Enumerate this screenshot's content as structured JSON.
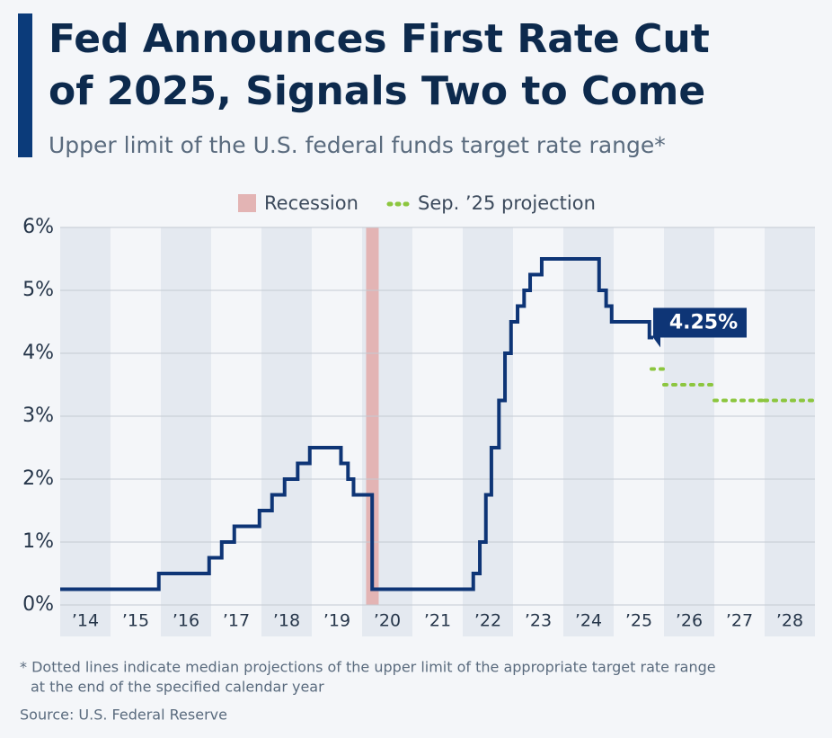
{
  "chart_data": {
    "type": "step",
    "title": [
      "Fed Announces First Rate Cut",
      "of 2025, Signals Two to Come"
    ],
    "subtitle": "Upper limit of the U.S. federal funds target rate range*",
    "footnote": [
      "* Dotted lines indicate median projections of the upper limit of the appropriate target rate range",
      "at the end of the specified calendar year"
    ],
    "source": "Source: U.S. Federal Reserve",
    "xlim": [
      2014,
      2029
    ],
    "xticks": [
      {
        "value": 2014.5,
        "label": "’14"
      },
      {
        "value": 2015.5,
        "label": "’15"
      },
      {
        "value": 2016.5,
        "label": "’16"
      },
      {
        "value": 2017.5,
        "label": "’17"
      },
      {
        "value": 2018.5,
        "label": "’18"
      },
      {
        "value": 2019.5,
        "label": "’19"
      },
      {
        "value": 2020.5,
        "label": "’20"
      },
      {
        "value": 2021.5,
        "label": "’21"
      },
      {
        "value": 2022.5,
        "label": "’22"
      },
      {
        "value": 2023.5,
        "label": "’23"
      },
      {
        "value": 2024.5,
        "label": "’24"
      },
      {
        "value": 2025.5,
        "label": "’25"
      },
      {
        "value": 2026.5,
        "label": "’26"
      },
      {
        "value": 2027.5,
        "label": "’27"
      },
      {
        "value": 2028.5,
        "label": "’28"
      }
    ],
    "ylim": [
      0,
      6
    ],
    "yticks": [
      {
        "value": 0,
        "label": "0%"
      },
      {
        "value": 1,
        "label": "1%"
      },
      {
        "value": 2,
        "label": "2%"
      },
      {
        "value": 3,
        "label": "3%"
      },
      {
        "value": 4,
        "label": "4%"
      },
      {
        "value": 5,
        "label": "5%"
      },
      {
        "value": 6,
        "label": "6%"
      }
    ],
    "grid": true,
    "recession": {
      "name": "Recession",
      "color": "#e3b4b4",
      "x": [
        2020.08,
        2020.33
      ]
    },
    "series": [
      {
        "name": null,
        "color": "#0e3576",
        "dotted": false,
        "x": [
          2014,
          2015.96,
          2016.96,
          2017.21,
          2017.46,
          2017.96,
          2018.21,
          2018.46,
          2018.72,
          2018.96,
          2019.58,
          2019.72,
          2019.83,
          2020.2,
          2022.21,
          2022.34,
          2022.46,
          2022.57,
          2022.72,
          2022.84,
          2022.96,
          2023.09,
          2023.22,
          2023.34,
          2023.57,
          2024.71,
          2024.85,
          2024.96,
          2025.71,
          2025.75
        ],
        "values": [
          0.25,
          0.5,
          0.75,
          1.0,
          1.25,
          1.5,
          1.75,
          2.0,
          2.25,
          2.5,
          2.25,
          2.0,
          1.75,
          0.25,
          0.5,
          1.0,
          1.75,
          2.5,
          3.25,
          4.0,
          4.5,
          4.75,
          5.0,
          5.25,
          5.5,
          5.0,
          4.75,
          4.5,
          4.25,
          4.25
        ],
        "value_labels": [
          null,
          null,
          null,
          null,
          null,
          null,
          null,
          null,
          null,
          null,
          null,
          null,
          null,
          null,
          null,
          null,
          null,
          null,
          null,
          null,
          null,
          null,
          null,
          null,
          null,
          null,
          null,
          null,
          null,
          "4.25%"
        ]
      },
      {
        "name": "Sep. ’25 projection",
        "color": "#8cc63f",
        "dotted": true,
        "x": [
          2025.75,
          2026,
          2027,
          2028
        ],
        "values": [
          3.75,
          3.5,
          3.25,
          3.25
        ]
      }
    ]
  }
}
